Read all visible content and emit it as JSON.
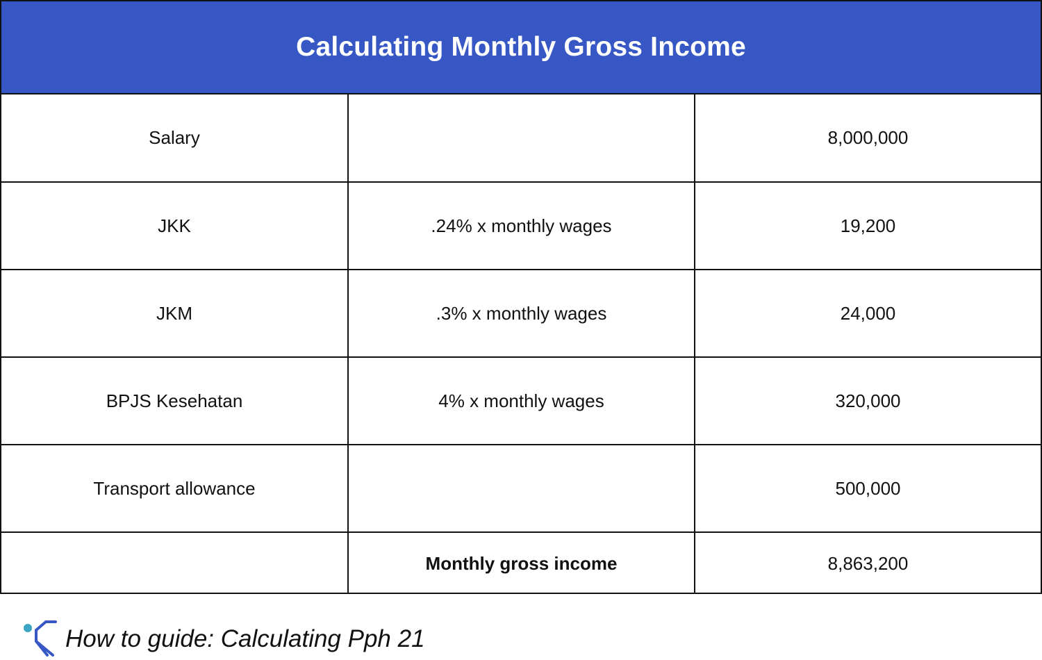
{
  "title": "Calculating Monthly Gross Income",
  "rows": [
    {
      "label": "Salary",
      "formula": "",
      "amount": "8,000,000"
    },
    {
      "label": "JKK",
      "formula": ".24% x monthly wages",
      "amount": "19,200"
    },
    {
      "label": "JKM",
      "formula": ".3% x monthly wages",
      "amount": "24,000"
    },
    {
      "label": "BPJS Kesehatan",
      "formula": "4% x monthly wages",
      "amount": "320,000"
    },
    {
      "label": "Transport allowance",
      "formula": "",
      "amount": "500,000"
    }
  ],
  "total": {
    "label": "",
    "formula": "Monthly gross income",
    "amount": "8,863,200"
  },
  "footer": {
    "logo_icon": "brand-logo-icon",
    "text": "How to guide: Calculating Pph 21"
  },
  "colors": {
    "header_bg": "#3657c4",
    "header_text": "#ffffff",
    "border": "#111111",
    "logo_teal": "#3aa6c0",
    "logo_blue": "#3657c4"
  }
}
